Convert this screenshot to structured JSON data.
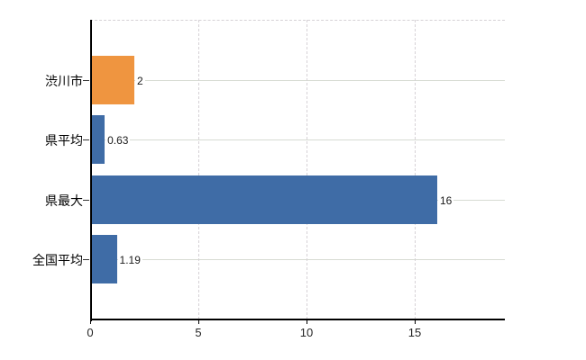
{
  "chart_data": {
    "type": "bar",
    "orientation": "horizontal",
    "title": "",
    "xlabel": "",
    "ylabel": "",
    "categories": [
      "渋川市",
      "県平均",
      "県最大",
      "全国平均"
    ],
    "values": [
      2,
      0.63,
      16,
      1.19
    ],
    "value_labels": [
      "2",
      "0.63",
      "16",
      "1.19"
    ],
    "bar_colors": [
      "#ef9540",
      "#3f6ca6",
      "#3f6ca6",
      "#3f6ca6"
    ],
    "xticks": [
      0,
      5,
      10,
      15
    ],
    "xtick_labels": [
      "0",
      "5",
      "10",
      "15"
    ],
    "xlim": [
      0,
      19.2
    ],
    "legend": null,
    "grid": {
      "vertical_style": "dashed",
      "horizontal_style": "solid",
      "top_border_style": "dashed"
    },
    "colors": {
      "background": "#ffffff",
      "axis": "#000000",
      "horizontal_gridline": "#d7dbd3",
      "vertical_gridline": "#d6d2d6",
      "tick_label": "#262626",
      "category_label": "#000000",
      "value_label": "#1a1a1a",
      "highlight_bar": "#ef9540",
      "default_bar": "#3f6ca6"
    }
  }
}
